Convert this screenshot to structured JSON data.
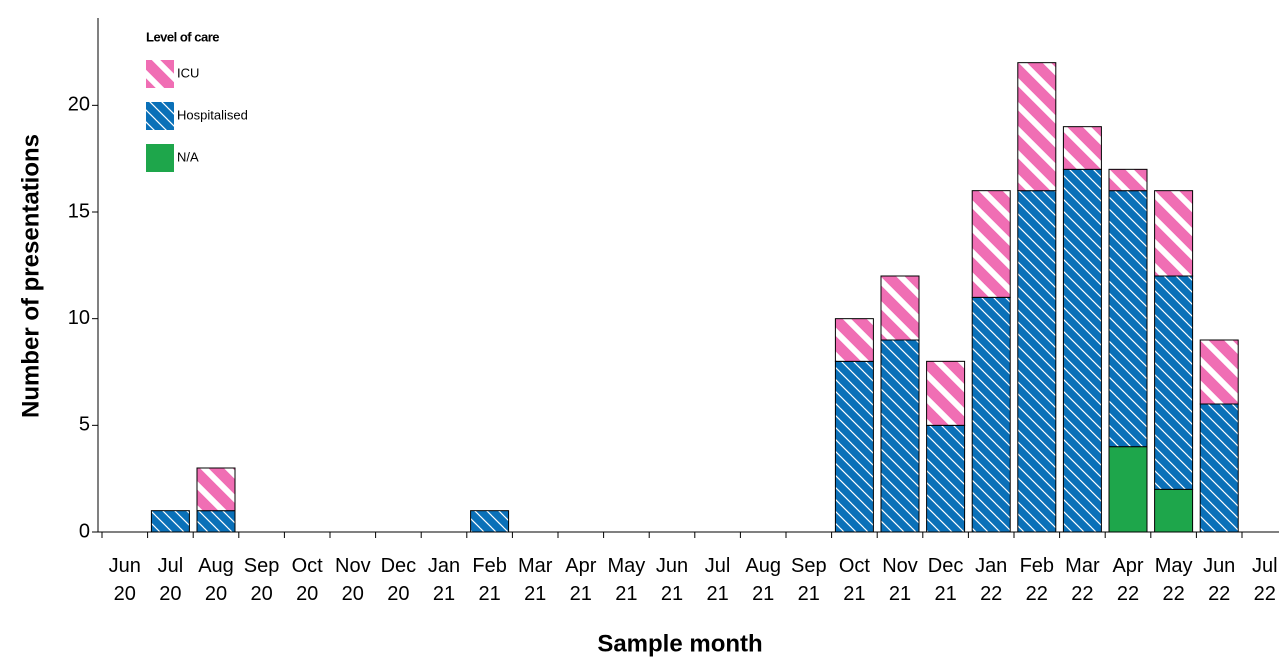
{
  "chart_data": {
    "type": "stacked-bar",
    "x_label": "Sample month",
    "y_label": "Number of presentations",
    "legend_title": "Level of care",
    "legend": "top-left",
    "categories": [
      "Jun 20",
      "Jul 20",
      "Aug 20",
      "Sep 20",
      "Oct 20",
      "Nov 20",
      "Dec 20",
      "Jan 21",
      "Feb 21",
      "Mar 21",
      "Apr 21",
      "May 21",
      "Jun 21",
      "Jul 21",
      "Aug 21",
      "Sep 21",
      "Oct 21",
      "Nov 21",
      "Dec 21",
      "Jan 22",
      "Feb 22",
      "Mar 22",
      "Apr 22",
      "May 22",
      "Jun 22",
      "Jul 22"
    ],
    "series": [
      {
        "name": "N/A",
        "color": "#1ea64b",
        "values": [
          0,
          0,
          0,
          0,
          0,
          0,
          0,
          0,
          0,
          0,
          0,
          0,
          0,
          0,
          0,
          0,
          0,
          0,
          0,
          0,
          0,
          0,
          4,
          2,
          0,
          0
        ]
      },
      {
        "name": "Hospitalised",
        "color": "#0a70b8",
        "values": [
          0,
          1,
          1,
          0,
          0,
          0,
          0,
          0,
          1,
          0,
          0,
          0,
          0,
          0,
          0,
          0,
          8,
          9,
          5,
          11,
          16,
          17,
          12,
          10,
          6,
          0
        ]
      },
      {
        "name": "ICU",
        "color": "#f06eb4",
        "values": [
          0,
          0,
          2,
          0,
          0,
          0,
          0,
          0,
          0,
          0,
          0,
          0,
          0,
          0,
          0,
          0,
          2,
          3,
          3,
          5,
          6,
          2,
          1,
          4,
          3,
          0
        ]
      }
    ],
    "ylim": [
      0,
      24
    ],
    "yticks": [
      0,
      5,
      10,
      15,
      20
    ]
  }
}
